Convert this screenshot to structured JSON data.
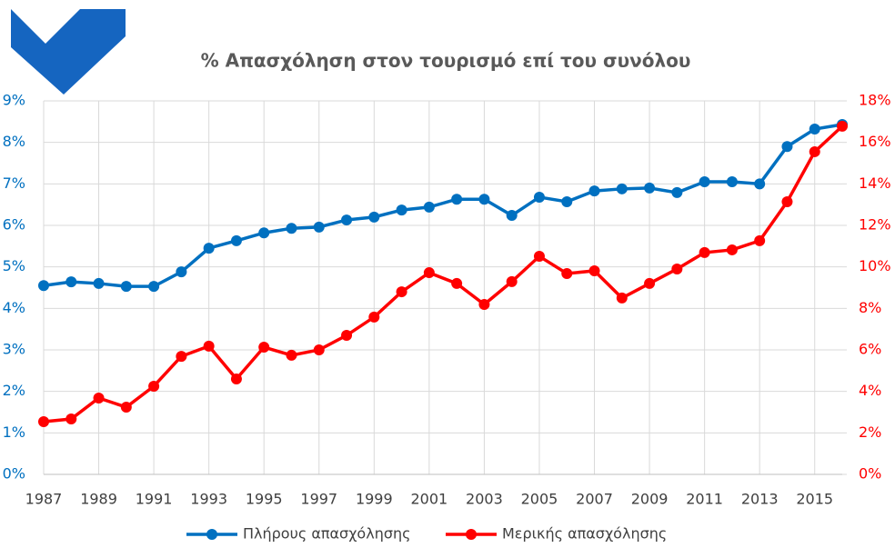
{
  "chart_data": {
    "type": "line",
    "title": "% Απασχόληση στον τουρισμό επί του συνόλου",
    "x": [
      1987,
      1988,
      1989,
      1990,
      1991,
      1992,
      1993,
      1994,
      1995,
      1996,
      1997,
      1998,
      1999,
      2000,
      2001,
      2002,
      2003,
      2004,
      2005,
      2006,
      2007,
      2008,
      2009,
      2010,
      2011,
      2012,
      2013,
      2014,
      2015,
      2016
    ],
    "xlim": [
      1987,
      2016
    ],
    "xticks": [
      1987,
      1989,
      1991,
      1993,
      1995,
      1997,
      1999,
      2001,
      2003,
      2005,
      2007,
      2009,
      2011,
      2013,
      2015
    ],
    "ylim": [
      0,
      9
    ],
    "yticks": [
      {
        "value": 0,
        "label": "0%"
      },
      {
        "value": 1,
        "label": "1%"
      },
      {
        "value": 2,
        "label": "2%"
      },
      {
        "value": 3,
        "label": "3%"
      },
      {
        "value": 4,
        "label": "4%"
      },
      {
        "value": 5,
        "label": "5%"
      },
      {
        "value": 6,
        "label": "6%"
      },
      {
        "value": 7,
        "label": "7%"
      },
      {
        "value": 8,
        "label": "8%"
      },
      {
        "value": 9,
        "label": "9%"
      }
    ],
    "y2lim": [
      0,
      18
    ],
    "y2ticks": [
      {
        "value": 0,
        "label": "0%"
      },
      {
        "value": 2,
        "label": "2%"
      },
      {
        "value": 4,
        "label": "4%"
      },
      {
        "value": 6,
        "label": "6%"
      },
      {
        "value": 8,
        "label": "8%"
      },
      {
        "value": 10,
        "label": "10%"
      },
      {
        "value": 12,
        "label": "12%"
      },
      {
        "value": 14,
        "label": "14%"
      },
      {
        "value": 16,
        "label": "16%"
      },
      {
        "value": 18,
        "label": "18%"
      }
    ],
    "grid": true,
    "legend": "bottom",
    "series": [
      {
        "name": "Πλήρους απασχόλησης",
        "color": "#0070c0",
        "values": [
          4.55,
          4.64,
          4.6,
          4.53,
          4.53,
          4.88,
          5.45,
          5.63,
          5.82,
          5.93,
          5.96,
          6.13,
          6.2,
          6.37,
          6.44,
          6.63,
          6.63,
          6.24,
          6.68,
          6.57,
          6.83,
          6.88,
          6.9,
          6.79,
          7.05,
          7.05,
          7.0,
          7.9,
          8.32,
          8.43
        ]
      },
      {
        "name": "Μερικής απασχόλησης",
        "color": "#ff0000",
        "axis": "y2",
        "values": [
          2.54,
          2.67,
          3.68,
          3.24,
          4.25,
          5.69,
          6.18,
          4.6,
          6.13,
          5.74,
          6.0,
          6.7,
          7.58,
          8.8,
          9.72,
          9.2,
          8.19,
          9.29,
          10.51,
          9.68,
          9.81,
          8.5,
          9.2,
          9.9,
          10.69,
          10.82,
          11.26,
          13.14,
          15.55,
          16.78
        ]
      }
    ]
  }
}
